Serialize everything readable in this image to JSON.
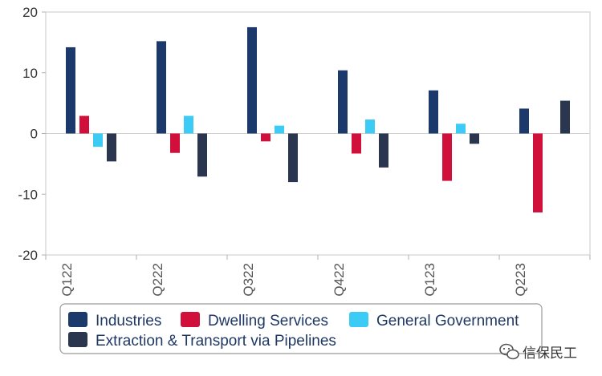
{
  "chart_data": {
    "type": "bar",
    "title": "",
    "xlabel": "",
    "ylabel": "",
    "categories": [
      "Q122",
      "Q222",
      "Q322",
      "Q422",
      "Q123",
      "Q223"
    ],
    "ylim": [
      -20,
      20
    ],
    "yticks": [
      20,
      10,
      0,
      -10,
      -20
    ],
    "grid": false,
    "legend_position": "bottom",
    "series": [
      {
        "name": "Industries",
        "color": "#1b3a6b",
        "values": [
          14.2,
          15.2,
          17.5,
          10.4,
          7.1,
          4.1
        ]
      },
      {
        "name": "Dwelling Services",
        "color": "#d0103a",
        "values": [
          2.9,
          -3.2,
          -1.3,
          -3.3,
          -7.8,
          -13.0
        ]
      },
      {
        "name": "General Government",
        "color": "#3ccbf4",
        "values": [
          -2.2,
          2.9,
          1.3,
          2.3,
          1.6,
          0.0
        ]
      },
      {
        "name": "Extraction & Transport via Pipelines",
        "color": "#2a3550",
        "values": [
          -4.6,
          -7.1,
          -8.0,
          -5.6,
          -1.7,
          5.4
        ]
      }
    ]
  },
  "watermark": {
    "text": "信保民工",
    "icon": "wechat-icon"
  }
}
